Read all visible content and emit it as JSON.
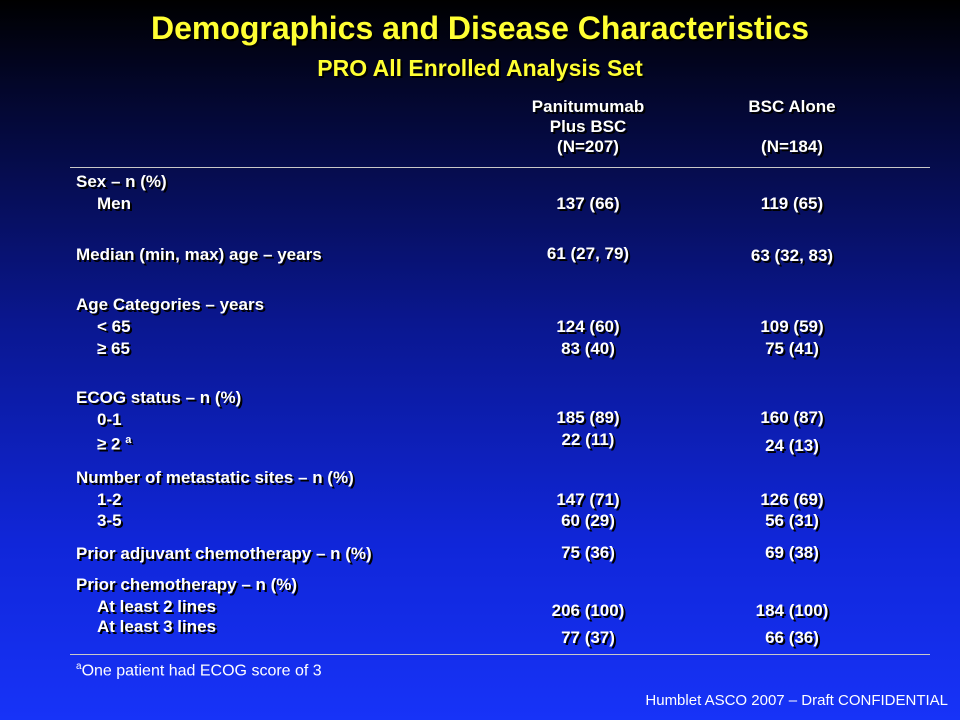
{
  "title": "Demographics and Disease Characteristics",
  "subtitle": "PRO All Enrolled Analysis Set",
  "columns": {
    "arm1": {
      "line1": "Panitumumab",
      "line2": "Plus BSC",
      "n": "(N=207)"
    },
    "arm2": {
      "line1": "BSC Alone",
      "n": "(N=184)"
    }
  },
  "rows": {
    "sex_label": "Sex – n (%)",
    "men_label": "Men",
    "men_arm1": "137 (66)",
    "men_arm2": "119 (65)",
    "age_median_label": "Median (min, max) age – years",
    "age_median_arm1": "61 (27, 79)",
    "age_median_arm2": "63 (32, 83)",
    "agecat_label": "Age Categories – years",
    "age_lt65_label": "< 65",
    "age_ge65_label": "≥ 65",
    "age_lt65_arm1": "124 (60)",
    "age_ge65_arm1": "83 (40)",
    "age_lt65_arm2": "109 (59)",
    "age_ge65_arm2": "75 (41)",
    "ecog_label": "ECOG status – n (%)",
    "ecog_01_label": "0-1",
    "ecog_2_label": "≥ 2",
    "ecog_2_sup": "a",
    "ecog_01_arm1": "185 (89)",
    "ecog_2_arm1": "22 (11)",
    "ecog_01_arm2": "160 (87)",
    "ecog_2_arm2": "24 (13)",
    "meta_label": "Number of metastatic sites – n (%)",
    "meta_12_label": "1-2",
    "meta_35_label": "3-5",
    "meta_12_arm1": "147 (71)",
    "meta_35_arm1": "60 (29)",
    "meta_12_arm2": "126 (69)",
    "meta_35_arm2": "56 (31)",
    "adjuvant_label": "Prior adjuvant chemotherapy – n (%)",
    "adjuvant_arm1": "75 (36)",
    "adjuvant_arm2": "69 (38)",
    "priorchemo_label": "Prior chemotherapy – n (%)",
    "lines2_label": "At least 2 lines",
    "lines3_label": "At least 3 lines",
    "lines2_arm1": "206 (100)",
    "lines3_arm1": "77 (37)",
    "lines2_arm2": "184 (100)",
    "lines3_arm2": "66 (36)"
  },
  "footnote": {
    "sup": "a",
    "text": "One patient had ECOG score of 3"
  },
  "credit": "Humblet ASCO 2007 – Draft  CONFIDENTIAL"
}
